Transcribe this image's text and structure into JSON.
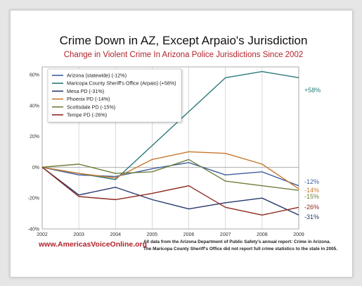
{
  "chart_data": {
    "type": "line",
    "title": "Crime Down in AZ, Except Arpaio's Jurisdiction",
    "subtitle": "Change in Violent Crime In Arizona Police Jurisdictions Since 2002",
    "x": [
      "2002",
      "2003",
      "2004",
      "2005",
      "2006",
      "2007",
      "2008",
      "2009"
    ],
    "y_ticks": [
      "60%",
      "40%",
      "20%",
      "0%",
      "-20%",
      "-40%"
    ],
    "ylim": [
      -40,
      65
    ],
    "grid": "vertical",
    "legend_position": "top-left",
    "series": [
      {
        "name": "Arizona (statewide) (-12%)",
        "color": "#3f5f9e",
        "values": [
          0,
          -5,
          -6,
          -1,
          3,
          -5,
          -3,
          -12
        ],
        "end_label": "-12%"
      },
      {
        "name": "Maricopa County Sheriff's Office (Arpaio) (+58%)",
        "color": "#2c7a7a",
        "values": [
          0,
          -4,
          -8,
          null,
          36,
          58,
          62,
          58
        ],
        "end_label": "+58%"
      },
      {
        "name": "Mesa PD (-31%)",
        "color": "#28386e",
        "values": [
          0,
          -18,
          -13,
          -21,
          -27,
          -23,
          -20,
          -31
        ],
        "end_label": "-31%"
      },
      {
        "name": "Phoenix PD (-14%)",
        "color": "#c8762e",
        "values": [
          0,
          -4,
          -7,
          5,
          10,
          9,
          2,
          -14
        ],
        "end_label": "-14%"
      },
      {
        "name": "Scottsdale PD (-15%)",
        "color": "#6e7f3c",
        "values": [
          0,
          2,
          -4,
          -3,
          5,
          -9,
          -12,
          -15
        ],
        "end_label": "-15%"
      },
      {
        "name": "Tempe PD (-26%)",
        "color": "#8e2a1f",
        "values": [
          0,
          -19,
          -21,
          -17,
          -12,
          -26,
          -31,
          -26
        ],
        "end_label": "-26%"
      }
    ]
  },
  "footer": {
    "website": "www.AmericasVoiceOnline.org",
    "note_line1": "All data from the Arizona Department of Public Safety's annual report: Crime in Arizona.",
    "note_line2": "The Maricopa County Sheriff's Office did not report full crime statistics to the state in 2005."
  }
}
